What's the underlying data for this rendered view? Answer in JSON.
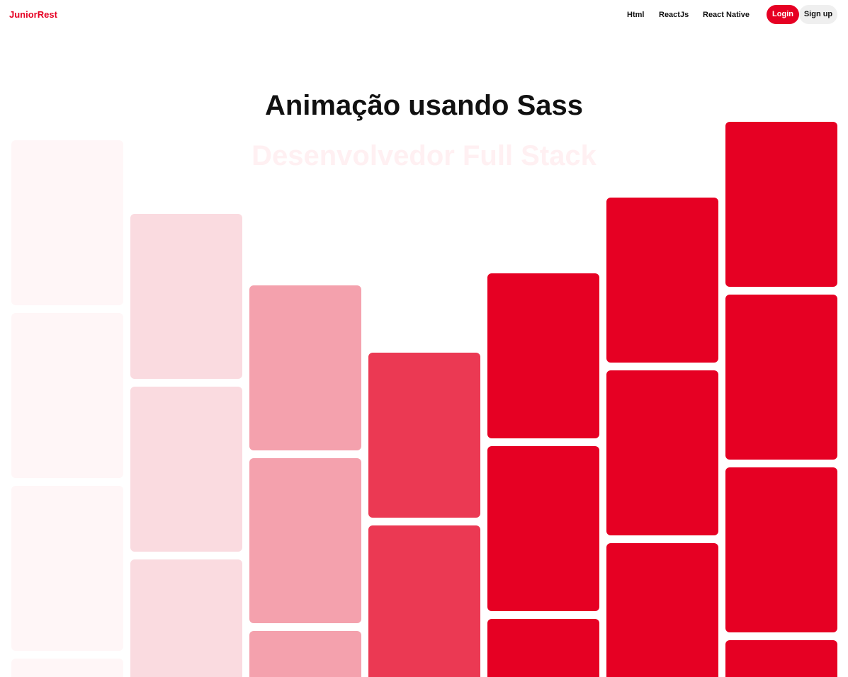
{
  "navbar": {
    "brand": "JuniorRest",
    "links": [
      "Html",
      "ReactJs",
      "React Native"
    ],
    "login_label": "Login",
    "signup_label": "Sign up"
  },
  "hero": {
    "title": "Animação usando Sass",
    "subtitle": "Desenvolvedor Full Stack"
  },
  "colors": {
    "accent": "#e60023",
    "column_colors": [
      "#fff6f7",
      "#fadbe0",
      "#f4a1ad",
      "#eb3953",
      "#e60023",
      "#e60023",
      "#e60023"
    ]
  }
}
